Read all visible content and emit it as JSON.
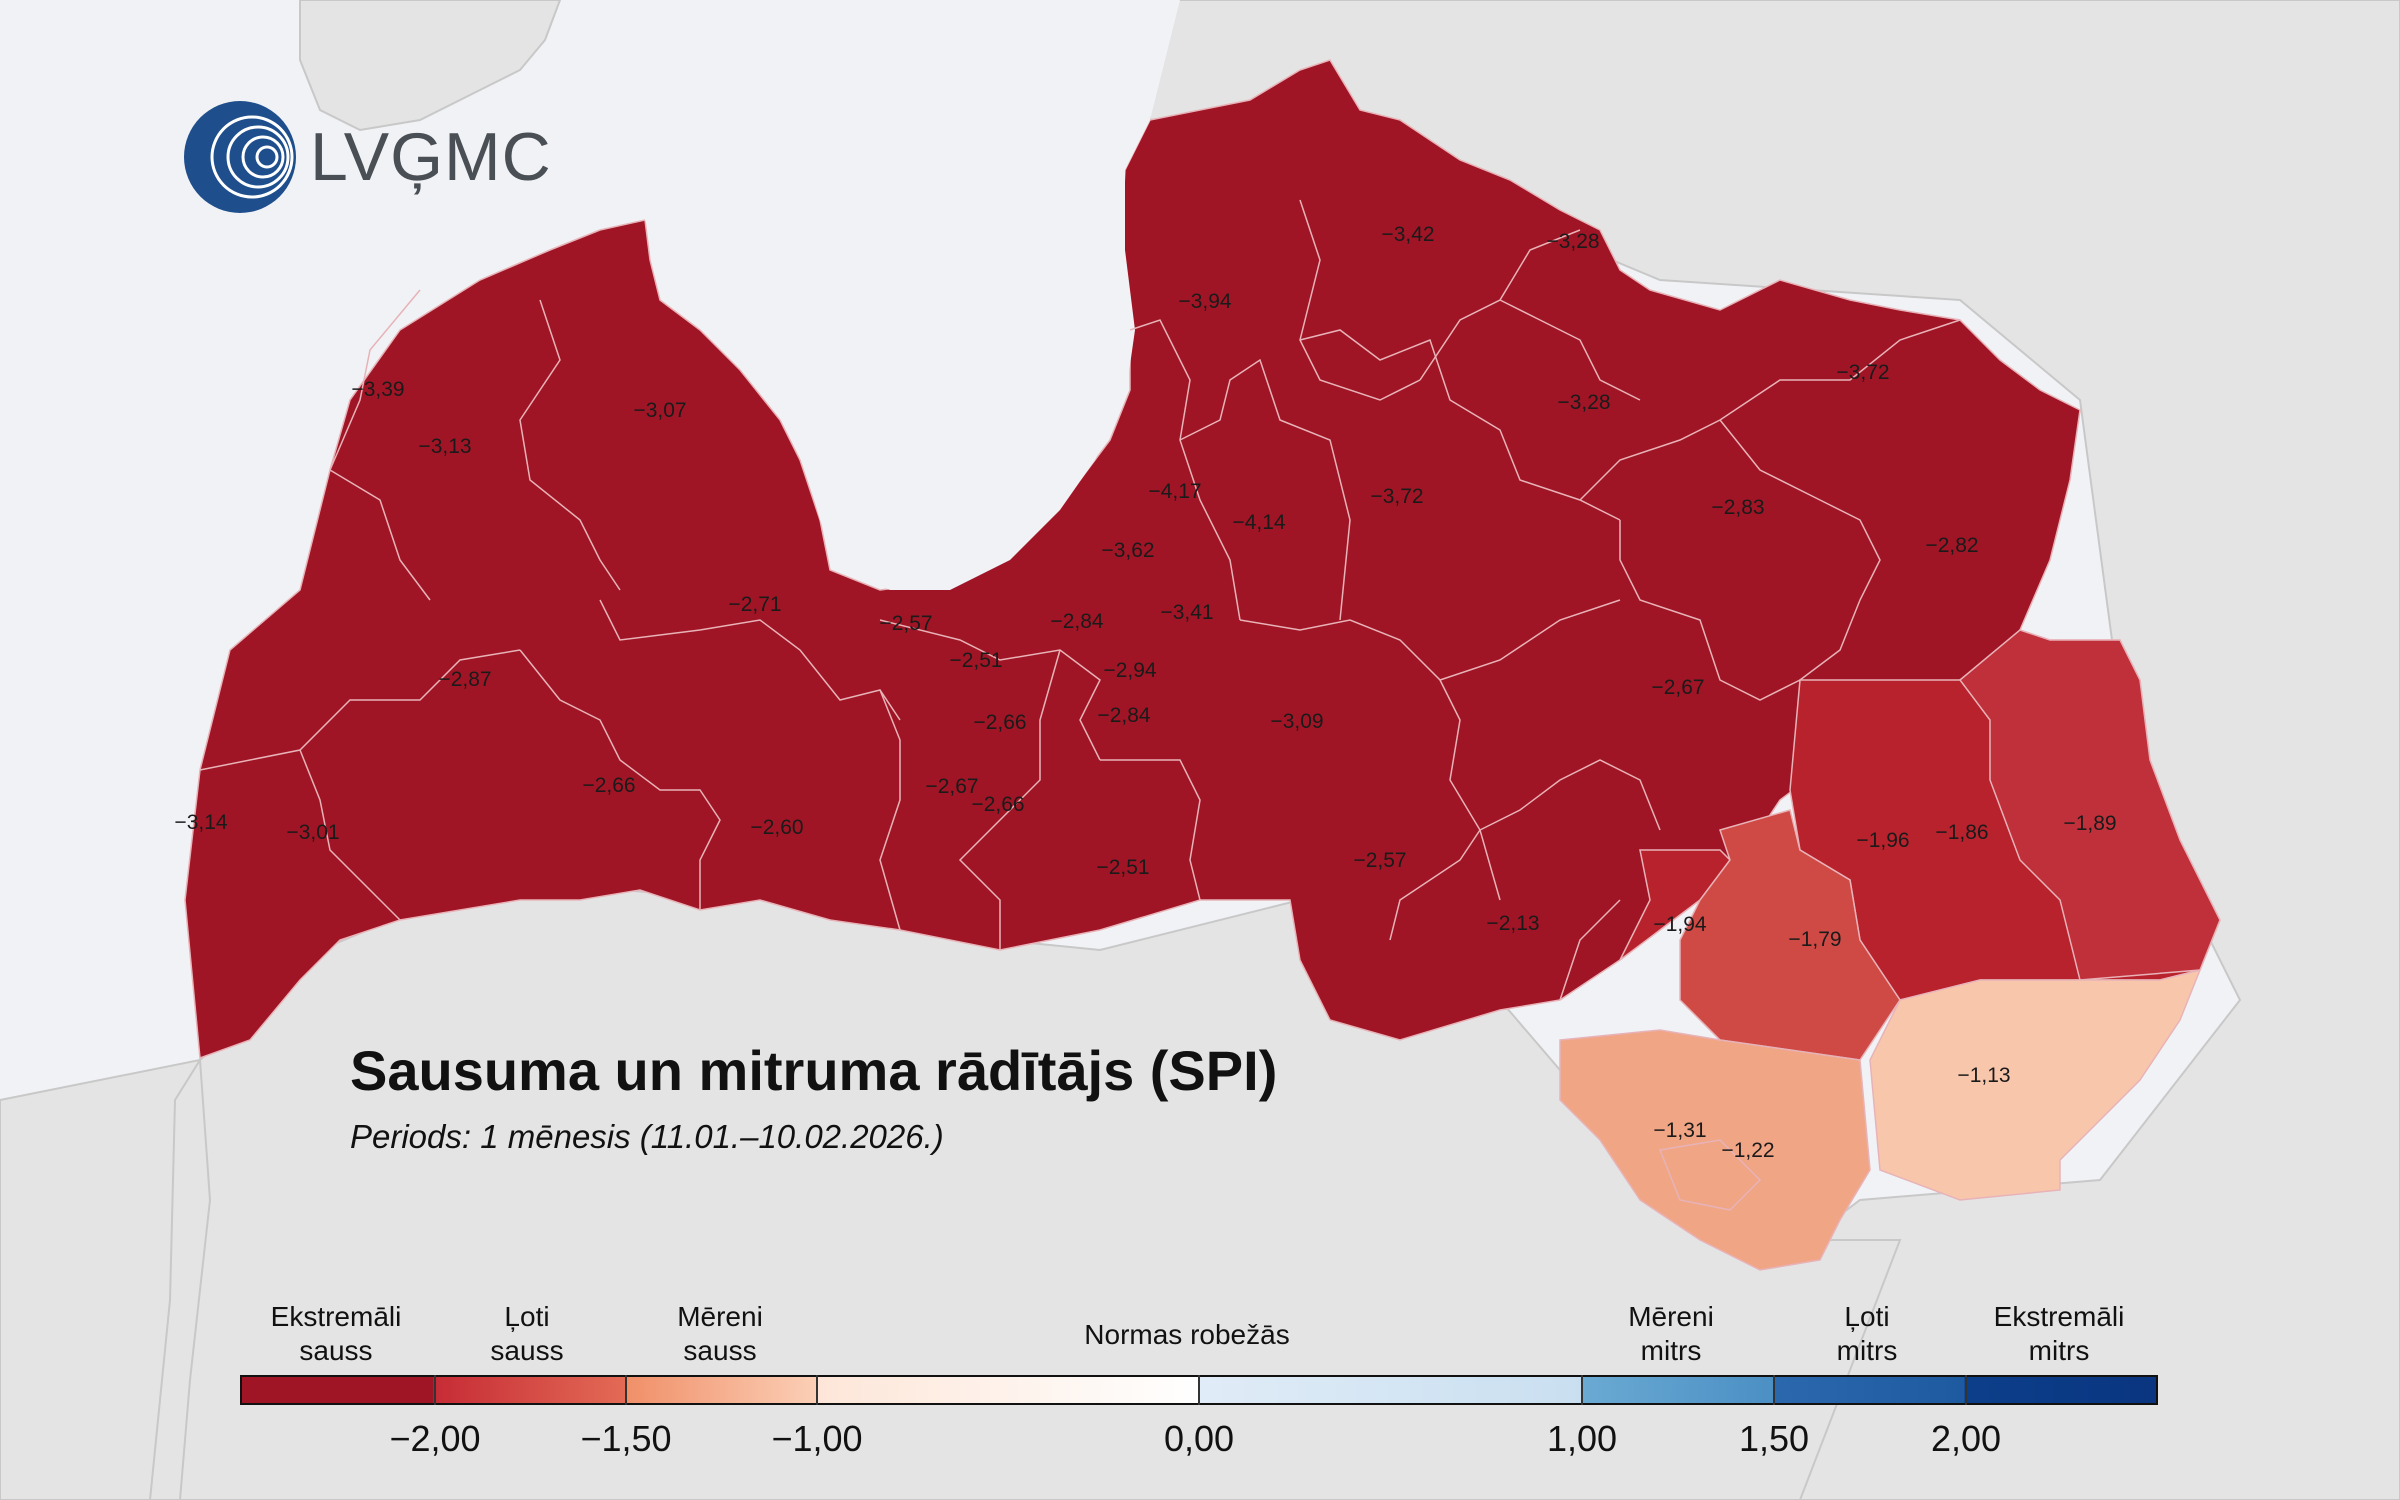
{
  "logo": {
    "text": "LVĢMC",
    "icon": "lvgmc-logo-icon",
    "color": "#1e4e8c"
  },
  "title": "Sausuma un mitruma rādītājs (SPI)",
  "subtitle": "Periods: 1 mēnesis (11.01.–10.02.2026.)",
  "colors": {
    "sea": "#f0f2f5",
    "land_other": "#e4e4e4",
    "extreme_dry": "#a01525",
    "very_dry": "#b8222d",
    "very_dry_light": "#c0303a",
    "moderate_dry_dark": "#cf4a45",
    "moderate_dry": "#f0a585",
    "moderate_dry_light": "#f8c6ab"
  },
  "region_values": [
    {
      "id": "r-liepaja-coast",
      "value": "−3,14"
    },
    {
      "id": "r-ventspils-n",
      "value": "−3,39"
    },
    {
      "id": "r-ventspils",
      "value": "−3,13"
    },
    {
      "id": "r-talsi-n",
      "value": "−3,07"
    },
    {
      "id": "r-kuldiga",
      "value": "−2,87"
    },
    {
      "id": "r-talsi-s",
      "value": "−2,71"
    },
    {
      "id": "r-liepaja",
      "value": "−3,01"
    },
    {
      "id": "r-saldus",
      "value": "−2,66"
    },
    {
      "id": "r-dobele",
      "value": "−2,60"
    },
    {
      "id": "r-tukums",
      "value": "−2,57"
    },
    {
      "id": "r-jurmala",
      "value": "−2,51"
    },
    {
      "id": "r-jelgava",
      "value": "−2,66"
    },
    {
      "id": "r-jelgava-city",
      "value": "−2,67"
    },
    {
      "id": "r-jelgava-s",
      "value": "−2,66"
    },
    {
      "id": "r-riga",
      "value": "−2,84"
    },
    {
      "id": "r-marupe",
      "value": "−2,94"
    },
    {
      "id": "r-kekava",
      "value": "−2,84"
    },
    {
      "id": "r-bauska",
      "value": "−2,51"
    },
    {
      "id": "r-ropazi",
      "value": "−3,41"
    },
    {
      "id": "r-adazi",
      "value": "−3,62"
    },
    {
      "id": "r-saulkrasti",
      "value": "−4,17"
    },
    {
      "id": "r-sigulda",
      "value": "−4,14"
    },
    {
      "id": "r-limbazi",
      "value": "−3,94"
    },
    {
      "id": "r-valmiera",
      "value": "−3,42"
    },
    {
      "id": "r-valka",
      "value": "−3,28"
    },
    {
      "id": "r-smiltene",
      "value": "−3,28"
    },
    {
      "id": "r-cesis",
      "value": "−3,72"
    },
    {
      "id": "r-ogre",
      "value": "−3,09"
    },
    {
      "id": "r-aluksne",
      "value": "−3,72"
    },
    {
      "id": "r-gulbene",
      "value": "−2,83"
    },
    {
      "id": "r-balvi",
      "value": "−2,82"
    },
    {
      "id": "r-madona",
      "value": "−2,67"
    },
    {
      "id": "r-aizkraukle",
      "value": "−2,57"
    },
    {
      "id": "r-jekabpils",
      "value": "−2,13"
    },
    {
      "id": "r-livani",
      "value": "−1,94"
    },
    {
      "id": "r-preili",
      "value": "−1,79"
    },
    {
      "id": "r-rezekne",
      "value": "−1,96"
    },
    {
      "id": "r-rezekne-city",
      "value": "−1,86"
    },
    {
      "id": "r-ludza",
      "value": "−1,89"
    },
    {
      "id": "r-augsdaugava",
      "value": "−1,31"
    },
    {
      "id": "r-daugavpils",
      "value": "−1,22"
    },
    {
      "id": "r-kraslava",
      "value": "−1,13"
    }
  ],
  "legend": {
    "captions": [
      {
        "line1": "Ekstremāli",
        "line2": "sauss"
      },
      {
        "line1": "Ļoti",
        "line2": "sauss"
      },
      {
        "line1": "Mēreni",
        "line2": "sauss"
      },
      {
        "line1": "Normas robežās",
        "line2": ""
      },
      {
        "line1": "Mēreni",
        "line2": "mitrs"
      },
      {
        "line1": "Ļoti",
        "line2": "mitrs"
      },
      {
        "line1": "Ekstremāli",
        "line2": "mitrs"
      }
    ],
    "ticks": [
      "−2,00",
      "−1,50",
      "−1,00",
      "0,00",
      "1,00",
      "1,50",
      "2,00"
    ]
  }
}
